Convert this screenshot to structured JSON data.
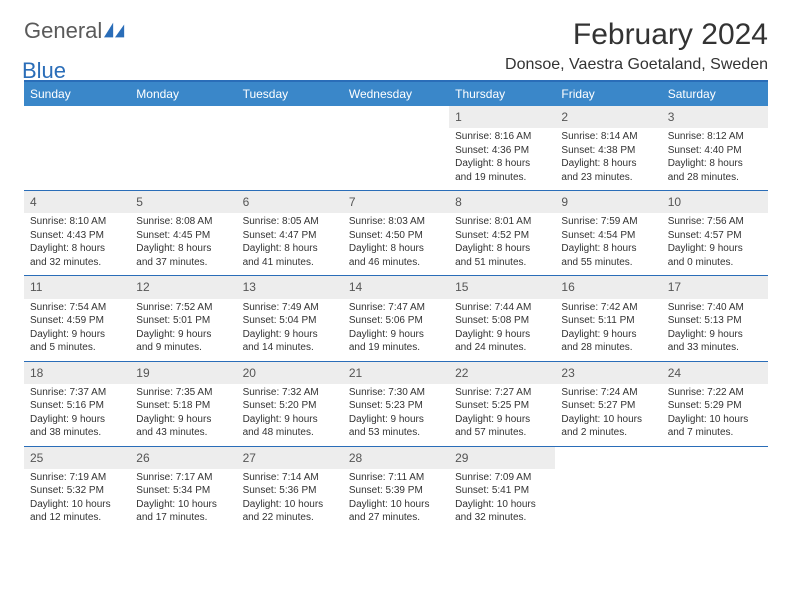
{
  "brand": {
    "part1": "General",
    "part2": "Blue",
    "logo_color": "#2a6db8"
  },
  "title": "February 2024",
  "location": "Donsoe, Vaestra Goetaland, Sweden",
  "colors": {
    "header_bg": "#3a87c9",
    "divider": "#2a6db8",
    "daynum_bg": "#ededed",
    "text": "#333333"
  },
  "weekdays": [
    "Sunday",
    "Monday",
    "Tuesday",
    "Wednesday",
    "Thursday",
    "Friday",
    "Saturday"
  ],
  "weeks": [
    [
      null,
      null,
      null,
      null,
      {
        "n": "1",
        "sr": "8:16 AM",
        "ss": "4:36 PM",
        "dl": "8 hours and 19 minutes."
      },
      {
        "n": "2",
        "sr": "8:14 AM",
        "ss": "4:38 PM",
        "dl": "8 hours and 23 minutes."
      },
      {
        "n": "3",
        "sr": "8:12 AM",
        "ss": "4:40 PM",
        "dl": "8 hours and 28 minutes."
      }
    ],
    [
      {
        "n": "4",
        "sr": "8:10 AM",
        "ss": "4:43 PM",
        "dl": "8 hours and 32 minutes."
      },
      {
        "n": "5",
        "sr": "8:08 AM",
        "ss": "4:45 PM",
        "dl": "8 hours and 37 minutes."
      },
      {
        "n": "6",
        "sr": "8:05 AM",
        "ss": "4:47 PM",
        "dl": "8 hours and 41 minutes."
      },
      {
        "n": "7",
        "sr": "8:03 AM",
        "ss": "4:50 PM",
        "dl": "8 hours and 46 minutes."
      },
      {
        "n": "8",
        "sr": "8:01 AM",
        "ss": "4:52 PM",
        "dl": "8 hours and 51 minutes."
      },
      {
        "n": "9",
        "sr": "7:59 AM",
        "ss": "4:54 PM",
        "dl": "8 hours and 55 minutes."
      },
      {
        "n": "10",
        "sr": "7:56 AM",
        "ss": "4:57 PM",
        "dl": "9 hours and 0 minutes."
      }
    ],
    [
      {
        "n": "11",
        "sr": "7:54 AM",
        "ss": "4:59 PM",
        "dl": "9 hours and 5 minutes."
      },
      {
        "n": "12",
        "sr": "7:52 AM",
        "ss": "5:01 PM",
        "dl": "9 hours and 9 minutes."
      },
      {
        "n": "13",
        "sr": "7:49 AM",
        "ss": "5:04 PM",
        "dl": "9 hours and 14 minutes."
      },
      {
        "n": "14",
        "sr": "7:47 AM",
        "ss": "5:06 PM",
        "dl": "9 hours and 19 minutes."
      },
      {
        "n": "15",
        "sr": "7:44 AM",
        "ss": "5:08 PM",
        "dl": "9 hours and 24 minutes."
      },
      {
        "n": "16",
        "sr": "7:42 AM",
        "ss": "5:11 PM",
        "dl": "9 hours and 28 minutes."
      },
      {
        "n": "17",
        "sr": "7:40 AM",
        "ss": "5:13 PM",
        "dl": "9 hours and 33 minutes."
      }
    ],
    [
      {
        "n": "18",
        "sr": "7:37 AM",
        "ss": "5:16 PM",
        "dl": "9 hours and 38 minutes."
      },
      {
        "n": "19",
        "sr": "7:35 AM",
        "ss": "5:18 PM",
        "dl": "9 hours and 43 minutes."
      },
      {
        "n": "20",
        "sr": "7:32 AM",
        "ss": "5:20 PM",
        "dl": "9 hours and 48 minutes."
      },
      {
        "n": "21",
        "sr": "7:30 AM",
        "ss": "5:23 PM",
        "dl": "9 hours and 53 minutes."
      },
      {
        "n": "22",
        "sr": "7:27 AM",
        "ss": "5:25 PM",
        "dl": "9 hours and 57 minutes."
      },
      {
        "n": "23",
        "sr": "7:24 AM",
        "ss": "5:27 PM",
        "dl": "10 hours and 2 minutes."
      },
      {
        "n": "24",
        "sr": "7:22 AM",
        "ss": "5:29 PM",
        "dl": "10 hours and 7 minutes."
      }
    ],
    [
      {
        "n": "25",
        "sr": "7:19 AM",
        "ss": "5:32 PM",
        "dl": "10 hours and 12 minutes."
      },
      {
        "n": "26",
        "sr": "7:17 AM",
        "ss": "5:34 PM",
        "dl": "10 hours and 17 minutes."
      },
      {
        "n": "27",
        "sr": "7:14 AM",
        "ss": "5:36 PM",
        "dl": "10 hours and 22 minutes."
      },
      {
        "n": "28",
        "sr": "7:11 AM",
        "ss": "5:39 PM",
        "dl": "10 hours and 27 minutes."
      },
      {
        "n": "29",
        "sr": "7:09 AM",
        "ss": "5:41 PM",
        "dl": "10 hours and 32 minutes."
      },
      null,
      null
    ]
  ],
  "labels": {
    "sunrise": "Sunrise:",
    "sunset": "Sunset:",
    "daylight": "Daylight:"
  }
}
